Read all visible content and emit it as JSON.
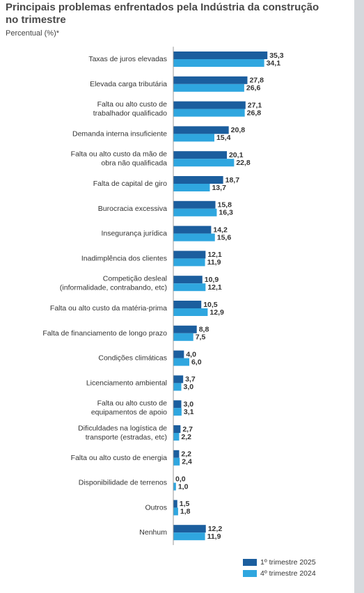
{
  "chart_data": {
    "type": "bar",
    "orientation": "horizontal",
    "title": "Principais problemas enfrentados pela Indústria da construção no trimestre",
    "subtitle": "Percentual (%)*",
    "categories": [
      "Taxas de juros elevadas",
      "Elevada carga tributária",
      "Falta ou alto custo de\ntrabalhador qualificado",
      "Demanda interna insuficiente",
      "Falta ou alto custo da mão de\nobra não qualificada",
      "Falta de capital de giro",
      "Burocracia excessiva",
      "Insegurança jurídica",
      "Inadimplência dos clientes",
      "Competição desleal\n(informalidade, contrabando, etc)",
      "Falta ou alto custo da matéria-prima",
      "Falta de financiamento de longo prazo",
      "Condições climáticas",
      "Licenciamento ambiental",
      "Falta ou alto custo de\nequipamentos de apoio",
      "Dificuldades na logística de\ntransporte (estradas, etc)",
      "Falta ou alto custo de energia",
      "Disponibilidade de terrenos",
      "Outros",
      "Nenhum"
    ],
    "series": [
      {
        "name": "1º trimestre 2025",
        "color": "#1b5e9e",
        "values": [
          35.3,
          27.8,
          27.1,
          20.8,
          20.1,
          18.7,
          15.8,
          14.2,
          12.1,
          10.9,
          10.5,
          8.8,
          4.0,
          3.7,
          3.0,
          2.7,
          2.2,
          0.0,
          1.5,
          12.2
        ],
        "value_labels": [
          "35,3",
          "27,8",
          "27,1",
          "20,8",
          "20,1",
          "18,7",
          "15,8",
          "14,2",
          "12,1",
          "10,9",
          "10,5",
          "8,8",
          "4,0",
          "3,7",
          "3,0",
          "2,7",
          "2,2",
          "0,0",
          "1,5",
          "12,2"
        ]
      },
      {
        "name": "4º trimestre 2024",
        "color": "#2fa6df",
        "values": [
          34.1,
          26.6,
          26.8,
          15.4,
          22.8,
          13.7,
          16.3,
          15.6,
          11.9,
          12.1,
          12.9,
          7.5,
          6.0,
          3.0,
          3.1,
          2.2,
          2.4,
          1.0,
          1.8,
          11.9
        ],
        "value_labels": [
          "34,1",
          "26,6",
          "26,8",
          "15,4",
          "22,8",
          "13,7",
          "16,3",
          "15,6",
          "11,9",
          "12,1",
          "12,9",
          "7,5",
          "6,0",
          "3,0",
          "3,1",
          "2,2",
          "2,4",
          "1,0",
          "1,8",
          "11,9"
        ]
      }
    ]
  }
}
